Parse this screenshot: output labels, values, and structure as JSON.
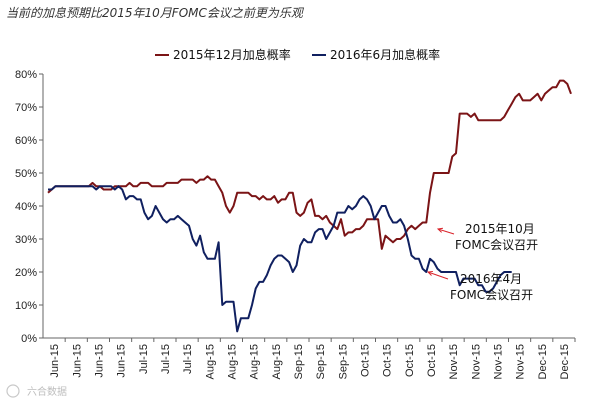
{
  "chart_data": {
    "type": "line",
    "title": "当前的加息预期比2015年10月FOMC会议之前更为乐观",
    "ylim": [
      0,
      80
    ],
    "yticks": [
      "0%",
      "10%",
      "20%",
      "30%",
      "40%",
      "50%",
      "60%",
      "70%",
      "80%"
    ],
    "xticks": [
      "Jun-15",
      "Jun-15",
      "Jun-15",
      "Jun-15",
      "Jul-15",
      "Jul-15",
      "Jul-15",
      "Aug-15",
      "Aug-15",
      "Aug-15",
      "Aug-15",
      "Sep-15",
      "Sep-15",
      "Sep-15",
      "Oct-15",
      "Oct-15",
      "Oct-15",
      "Oct-15",
      "Nov-15",
      "Nov-15",
      "Nov-15",
      "Nov-15",
      "Dec-15",
      "Dec-15"
    ],
    "grid": false,
    "legend_position": "top",
    "series": [
      {
        "name": "2015年12月加息概率",
        "color": "#7b1416",
        "values": [
          44,
          45,
          46,
          46,
          46,
          46,
          46,
          46,
          46,
          46,
          46,
          46,
          47,
          46,
          46,
          45,
          45,
          45,
          46,
          46,
          46,
          46,
          47,
          46,
          46,
          47,
          47,
          47,
          46,
          46,
          46,
          46,
          47,
          47,
          47,
          47,
          48,
          48,
          48,
          48,
          47,
          48,
          48,
          49,
          48,
          48,
          46,
          44,
          40,
          38,
          40,
          44,
          44,
          44,
          44,
          43,
          43,
          42,
          43,
          42,
          42,
          43,
          41,
          42,
          42,
          44,
          44,
          38,
          37,
          38,
          41,
          42,
          37,
          37,
          36,
          37,
          35,
          34,
          33,
          36,
          31,
          32,
          32,
          33,
          33,
          34,
          36,
          36,
          36,
          36,
          27,
          31,
          30,
          29,
          30,
          30,
          31,
          33,
          34,
          33,
          34,
          35,
          35,
          44,
          50,
          50,
          50,
          50,
          50,
          55,
          56,
          68,
          68,
          68,
          67,
          68,
          66,
          66,
          66,
          66,
          66,
          66,
          66,
          67,
          69,
          71,
          73,
          74,
          72,
          72,
          72,
          73,
          74,
          72,
          74,
          75,
          76,
          76,
          78,
          78,
          77,
          74
        ]
      },
      {
        "name": "2016年6月加息概率",
        "color": "#102060",
        "values": [
          45,
          45,
          46,
          46,
          46,
          46,
          46,
          46,
          46,
          46,
          46,
          46,
          46,
          45,
          46,
          46,
          46,
          46,
          45,
          46,
          45,
          42,
          43,
          43,
          42,
          42,
          38,
          36,
          37,
          40,
          38,
          36,
          35,
          36,
          36,
          37,
          36,
          35,
          34,
          30,
          28,
          31,
          26,
          24,
          24,
          24,
          29,
          10,
          11,
          11,
          11,
          2,
          6,
          6,
          6,
          10,
          15,
          17,
          17,
          19,
          22,
          24,
          25,
          25,
          24,
          23,
          20,
          22,
          28,
          30,
          29,
          29,
          32,
          33,
          33,
          30,
          32,
          34,
          38,
          38,
          38,
          40,
          39,
          40,
          42,
          43,
          42,
          40,
          36,
          38,
          40,
          40,
          37,
          35,
          35,
          36,
          34,
          30,
          25,
          24,
          24,
          21,
          20,
          24,
          23,
          21,
          20,
          20,
          20,
          20,
          20,
          16,
          18,
          18,
          18,
          18,
          16,
          16,
          14,
          14,
          15,
          17,
          19,
          20,
          20,
          20
        ]
      }
    ],
    "annotations": [
      {
        "series": "2015年12月加息概率",
        "lines": [
          "2015年10月",
          "FOMC会议召开"
        ]
      },
      {
        "series": "2016年6月加息概率",
        "lines": [
          "2016年4月",
          "FOMC会议召开"
        ]
      }
    ]
  },
  "watermark": "六合数据"
}
